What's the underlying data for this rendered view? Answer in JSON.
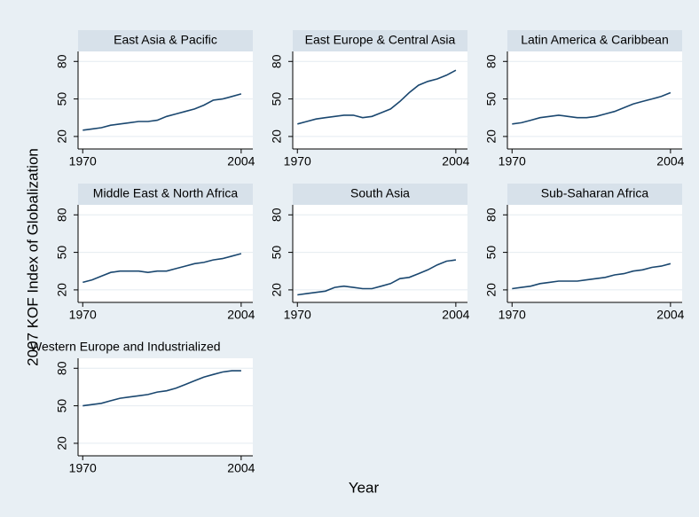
{
  "ylabel": "2007 KOF Index of Globalization",
  "xlabel": "Year",
  "chart_data": [
    {
      "type": "line",
      "title": "East Asia & Pacific",
      "color": "#1a476f",
      "x": [
        1970,
        1972,
        1974,
        1976,
        1978,
        1980,
        1982,
        1984,
        1986,
        1988,
        1990,
        1992,
        1994,
        1996,
        1998,
        2000,
        2002,
        2004
      ],
      "values": [
        25,
        26,
        27,
        29,
        30,
        31,
        32,
        32,
        33,
        36,
        38,
        40,
        42,
        45,
        49,
        50,
        52,
        54
      ],
      "xlim": [
        1969,
        2006.5
      ],
      "xticks": [
        1970,
        2004
      ],
      "ylim": [
        10,
        88
      ],
      "yticks": [
        20,
        50,
        80
      ],
      "grid": true
    },
    {
      "type": "line",
      "title": "East Europe & Central Asia",
      "color": "#1a476f",
      "x": [
        1970,
        1972,
        1974,
        1976,
        1978,
        1980,
        1982,
        1984,
        1986,
        1988,
        1990,
        1992,
        1994,
        1996,
        1998,
        2000,
        2002,
        2004
      ],
      "values": [
        30,
        32,
        34,
        35,
        36,
        37,
        37,
        35,
        36,
        39,
        42,
        48,
        55,
        61,
        64,
        66,
        69,
        73
      ],
      "xlim": [
        1969,
        2006.5
      ],
      "xticks": [
        1970,
        2004
      ],
      "ylim": [
        10,
        88
      ],
      "yticks": [
        20,
        50,
        80
      ],
      "grid": true
    },
    {
      "type": "line",
      "title": "Latin America & Caribbean",
      "color": "#1a476f",
      "x": [
        1970,
        1972,
        1974,
        1976,
        1978,
        1980,
        1982,
        1984,
        1986,
        1988,
        1990,
        1992,
        1994,
        1996,
        1998,
        2000,
        2002,
        2004
      ],
      "values": [
        30,
        31,
        33,
        35,
        36,
        37,
        36,
        35,
        35,
        36,
        38,
        40,
        43,
        46,
        48,
        50,
        52,
        55
      ],
      "xlim": [
        1969,
        2006.5
      ],
      "xticks": [
        1970,
        2004
      ],
      "ylim": [
        10,
        88
      ],
      "yticks": [
        20,
        50,
        80
      ],
      "grid": true
    },
    {
      "type": "line",
      "title": "Middle East & North Africa",
      "color": "#1a476f",
      "x": [
        1970,
        1972,
        1974,
        1976,
        1978,
        1980,
        1982,
        1984,
        1986,
        1988,
        1990,
        1992,
        1994,
        1996,
        1998,
        2000,
        2002,
        2004
      ],
      "values": [
        26,
        28,
        31,
        34,
        35,
        35,
        35,
        34,
        35,
        35,
        37,
        39,
        41,
        42,
        44,
        45,
        47,
        49
      ],
      "xlim": [
        1969,
        2006.5
      ],
      "xticks": [
        1970,
        2004
      ],
      "ylim": [
        10,
        88
      ],
      "yticks": [
        20,
        50,
        80
      ],
      "grid": true
    },
    {
      "type": "line",
      "title": "South Asia",
      "color": "#1a476f",
      "x": [
        1970,
        1972,
        1974,
        1976,
        1978,
        1980,
        1982,
        1984,
        1986,
        1988,
        1990,
        1992,
        1994,
        1996,
        1998,
        2000,
        2002,
        2004
      ],
      "values": [
        16,
        17,
        18,
        19,
        22,
        23,
        22,
        21,
        21,
        23,
        25,
        29,
        30,
        33,
        36,
        40,
        43,
        44
      ],
      "xlim": [
        1969,
        2006.5
      ],
      "xticks": [
        1970,
        2004
      ],
      "ylim": [
        10,
        88
      ],
      "yticks": [
        20,
        50,
        80
      ],
      "grid": true
    },
    {
      "type": "line",
      "title": "Sub-Saharan Africa",
      "color": "#1a476f",
      "x": [
        1970,
        1972,
        1974,
        1976,
        1978,
        1980,
        1982,
        1984,
        1986,
        1988,
        1990,
        1992,
        1994,
        1996,
        1998,
        2000,
        2002,
        2004
      ],
      "values": [
        21,
        22,
        23,
        25,
        26,
        27,
        27,
        27,
        28,
        29,
        30,
        32,
        33,
        35,
        36,
        38,
        39,
        41
      ],
      "xlim": [
        1969,
        2006.5
      ],
      "xticks": [
        1970,
        2004
      ],
      "ylim": [
        10,
        88
      ],
      "yticks": [
        20,
        50,
        80
      ],
      "grid": true
    },
    {
      "type": "line",
      "title": "Western Europe and Industrialized",
      "color": "#1a476f",
      "x": [
        1970,
        1972,
        1974,
        1976,
        1978,
        1980,
        1982,
        1984,
        1986,
        1988,
        1990,
        1992,
        1994,
        1996,
        1998,
        2000,
        2002,
        2004
      ],
      "values": [
        50,
        51,
        52,
        54,
        56,
        57,
        58,
        59,
        61,
        62,
        64,
        67,
        70,
        73,
        75,
        77,
        78,
        78
      ],
      "xlim": [
        1969,
        2006.5
      ],
      "xticks": [
        1970,
        2004
      ],
      "ylim": [
        10,
        88
      ],
      "yticks": [
        20,
        50,
        80
      ],
      "grid": true
    }
  ]
}
